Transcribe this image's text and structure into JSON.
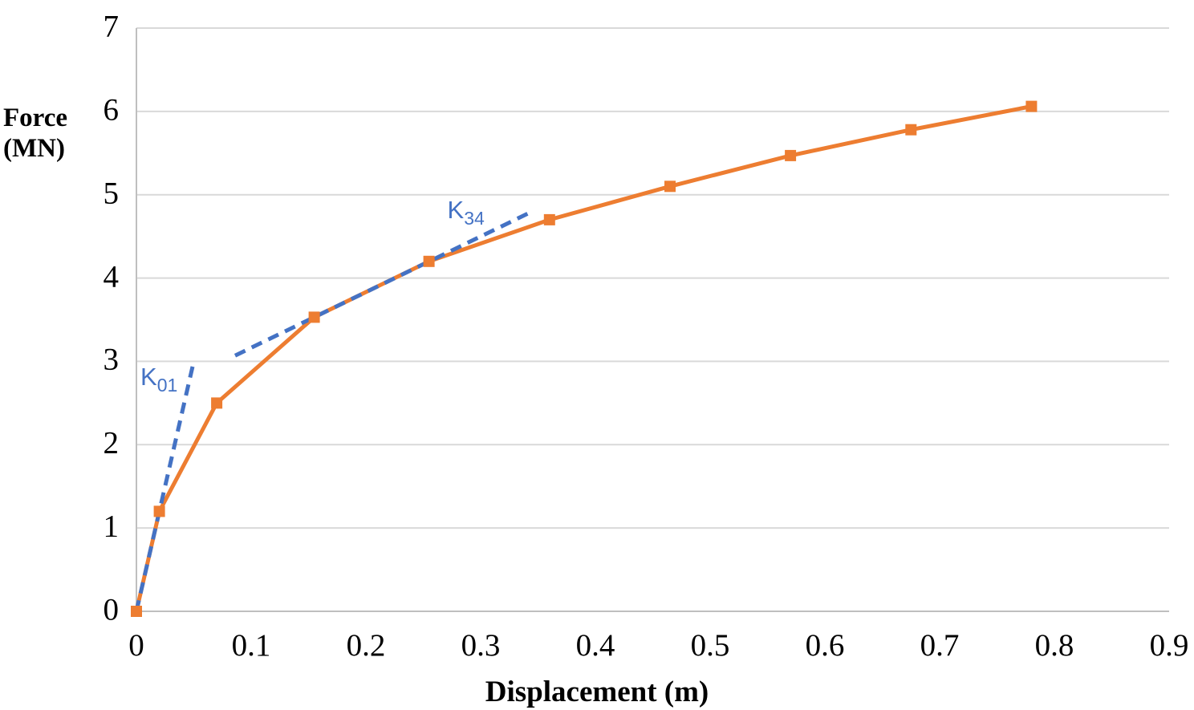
{
  "chart_data": {
    "type": "line",
    "title": "",
    "xlabel": "Displacement (m)",
    "ylabel": "Force (MN)",
    "ylabel_lines": [
      "Force",
      "(MN)"
    ],
    "xlim": [
      0,
      0.9
    ],
    "ylim": [
      0,
      7
    ],
    "grid": "horizontal-only",
    "legend": "none",
    "background": "#FFFFFF",
    "axis_color": "#BFBFBF",
    "grid_color": "#D9D9D9",
    "tick_color": "#000000",
    "x_ticks": [
      {
        "label": "0",
        "value": 0
      },
      {
        "label": "0.1",
        "value": 0.1
      },
      {
        "label": "0.2",
        "value": 0.2
      },
      {
        "label": "0.3",
        "value": 0.3
      },
      {
        "label": "0.4",
        "value": 0.4
      },
      {
        "label": "0.5",
        "value": 0.5
      },
      {
        "label": "0.6",
        "value": 0.6
      },
      {
        "label": "0.7",
        "value": 0.7
      },
      {
        "label": "0.8",
        "value": 0.8
      },
      {
        "label": "0.9",
        "value": 0.9
      }
    ],
    "y_ticks": [
      {
        "label": "0",
        "value": 0
      },
      {
        "label": "1",
        "value": 1
      },
      {
        "label": "2",
        "value": 2
      },
      {
        "label": "3",
        "value": 3
      },
      {
        "label": "4",
        "value": 4
      },
      {
        "label": "5",
        "value": 5
      },
      {
        "label": "6",
        "value": 6
      },
      {
        "label": "7",
        "value": 7
      }
    ],
    "series": [
      {
        "name": "force-displacement-curve",
        "color": "#ED7D31",
        "style": "solid",
        "marker": "square",
        "points": [
          [
            0,
            0
          ],
          [
            0.02,
            1.2
          ],
          [
            0.07,
            2.5
          ],
          [
            0.155,
            3.53
          ],
          [
            0.255,
            4.2
          ],
          [
            0.36,
            4.7
          ],
          [
            0.465,
            5.1
          ],
          [
            0.57,
            5.47
          ],
          [
            0.675,
            5.78
          ],
          [
            0.78,
            6.06
          ]
        ]
      },
      {
        "name": "k01-secant-stiffness-line",
        "color": "#4472C4",
        "style": "dashed",
        "marker": "none",
        "points": [
          [
            0,
            0
          ],
          [
            0.05,
            3.0
          ]
        ]
      },
      {
        "name": "k34-secant-stiffness-line",
        "color": "#4472C4",
        "style": "dashed",
        "marker": "none",
        "points": [
          [
            0.086,
            3.07
          ],
          [
            0.342,
            4.78
          ]
        ]
      }
    ],
    "annotations": [
      {
        "text_main": "K",
        "text_sub": "01",
        "x": 0.0035,
        "y": 2.97,
        "color": "#4472C4"
      },
      {
        "text_main": "K",
        "text_sub": "34",
        "x": 0.271,
        "y": 4.97,
        "color": "#4472C4"
      }
    ]
  }
}
